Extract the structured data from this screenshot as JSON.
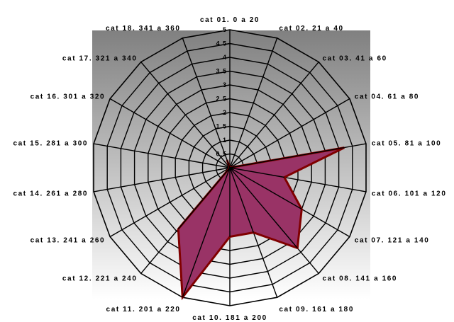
{
  "chart_data": {
    "type": "radar",
    "title": "",
    "categories": [
      "cat 01. 0 a 20",
      "cat 02. 21 a 40",
      "cat 03. 41 a 60",
      "cat 04. 61 a 80",
      "cat 05. 81 a 100",
      "cat 06. 101 a 120",
      "cat 07. 121 a 140",
      "cat 08. 141 a 160",
      "cat 09. 161 a 180",
      "cat 10. 181 a 200",
      "cat 11. 201 a 220",
      "cat 12. 221 a 240",
      "cat 13. 241 a 260",
      "cat 14. 261 a 280",
      "cat 15. 281 a 300",
      "cat 16. 301 a 320",
      "cat 17. 321 a 340",
      "cat 18. 341 a 360"
    ],
    "series": [
      {
        "values": [
          0,
          0,
          0,
          0,
          4.2,
          2.0,
          3.0,
          3.8,
          2.5,
          2.5,
          5.0,
          2.9,
          0,
          0,
          0,
          0,
          0,
          0.3
        ],
        "color": "#993366",
        "stroke": "#800000"
      }
    ],
    "r_ticks": [
      "",
      "0.5",
      "1",
      "1.5",
      "2",
      "2.5",
      "3",
      "3.5",
      "4",
      "4.5",
      "5"
    ],
    "rlim": [
      0,
      5
    ],
    "grid": true,
    "legend": "none",
    "background_gradient": [
      "#808080",
      "#ffffff"
    ]
  }
}
